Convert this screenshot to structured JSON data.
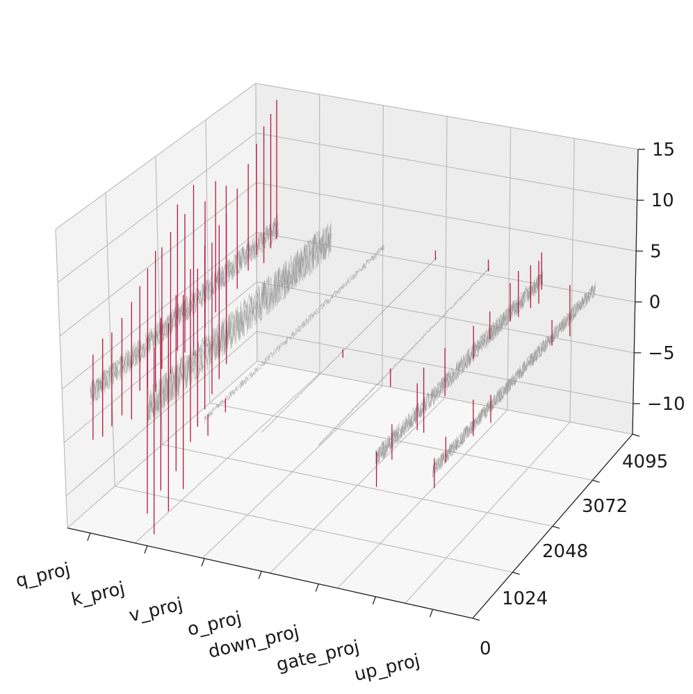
{
  "chart_data": {
    "type": "3d-line-spikes",
    "title": "",
    "xlabel": "",
    "ylabel": "",
    "zlabel": "",
    "categories": [
      "q_proj",
      "k_proj",
      "v_proj",
      "o_proj",
      "down_proj",
      "gate_proj",
      "up_proj"
    ],
    "y_ticks": [
      0,
      1024,
      2048,
      3072,
      4095
    ],
    "y_tick_labels": [
      "0",
      "1024",
      "2048",
      "3072",
      "4095"
    ],
    "ylim": [
      0,
      4095
    ],
    "z_ticks": [
      15,
      10,
      5,
      0,
      -5,
      -10
    ],
    "z_tick_labels": [
      "15",
      "10",
      "5",
      "0",
      "−10"
    ],
    "z_tick_labels_full": [
      "15",
      "10",
      "5",
      "0",
      "−5",
      "−10"
    ],
    "zlim": [
      -13,
      15
    ],
    "grid": true,
    "colors": {
      "noise": "#8f8f8f",
      "spike": "#b8123e",
      "pane_left": "#f3f3f3",
      "pane_back": "#ededed",
      "pane_floor": "#f7f7f7"
    },
    "series": [
      {
        "name": "q_proj",
        "noise_amplitude": 1.2,
        "spikes": [
          {
            "y": 60,
            "top": 3.5,
            "bottom": -4.5
          },
          {
            "y": 270,
            "top": 4.2,
            "bottom": -5.0
          },
          {
            "y": 470,
            "top": 4.0,
            "bottom": -4.8
          },
          {
            "y": 690,
            "top": 4.5,
            "bottom": -4.6
          },
          {
            "y": 900,
            "top": 5.2,
            "bottom": -5.8
          },
          {
            "y": 1080,
            "top": 6.0,
            "bottom": -3.8
          },
          {
            "y": 1250,
            "top": 7.0,
            "bottom": -4.2
          },
          {
            "y": 1420,
            "top": 8.0,
            "bottom": -5.2
          },
          {
            "y": 1560,
            "top": 7.8,
            "bottom": -3.6
          },
          {
            "y": 1750,
            "top": 8.5,
            "bottom": -4.8
          },
          {
            "y": 1900,
            "top": 10.5,
            "bottom": -3.2
          },
          {
            "y": 2060,
            "top": 9.0,
            "bottom": -4.0
          },
          {
            "y": 2250,
            "top": 11.0,
            "bottom": -5.0
          },
          {
            "y": 2500,
            "top": 8.5,
            "bottom": -3.4
          },
          {
            "y": 2730,
            "top": 9.5,
            "bottom": -2.8
          },
          {
            "y": 2960,
            "top": 8.2,
            "bottom": -3.0
          },
          {
            "y": 3200,
            "top": 7.0,
            "bottom": -2.4
          },
          {
            "y": 3440,
            "top": 8.4,
            "bottom": -1.6
          },
          {
            "y": 3620,
            "top": 9.6,
            "bottom": -0.8
          },
          {
            "y": 3780,
            "top": 10.6,
            "bottom": -2.2
          },
          {
            "y": 3930,
            "top": 11.2,
            "bottom": -1.4
          },
          {
            "y": 4060,
            "top": 12.0,
            "bottom": -1.0
          }
        ]
      },
      {
        "name": "k_proj",
        "noise_amplitude": 1.8,
        "spikes": [
          {
            "y": 0,
            "top": 6.5,
            "bottom": -10.0
          },
          {
            "y": 150,
            "top": 5.0,
            "bottom": -12.5
          },
          {
            "y": 300,
            "top": 7.2,
            "bottom": -9.0
          },
          {
            "y": 470,
            "top": 6.0,
            "bottom": -11.6
          },
          {
            "y": 640,
            "top": 8.0,
            "bottom": -8.5
          },
          {
            "y": 800,
            "top": 7.4,
            "bottom": -10.8
          },
          {
            "y": 960,
            "top": 9.2,
            "bottom": -7.0
          },
          {
            "y": 1120,
            "top": 8.6,
            "bottom": -6.2
          },
          {
            "y": 1280,
            "top": 10.2,
            "bottom": -5.2
          },
          {
            "y": 1440,
            "top": 9.8,
            "bottom": -4.4
          },
          {
            "y": 1600,
            "top": 10.8,
            "bottom": -3.6
          },
          {
            "y": 1760,
            "top": 11.2,
            "bottom": -2.8
          }
        ]
      },
      {
        "name": "v_proj",
        "noise_amplitude": 0.35,
        "spikes": [
          {
            "y": 80,
            "top": 0.2,
            "bottom": -1.8
          },
          {
            "y": 480,
            "top": 0.1,
            "bottom": -1.2
          }
        ]
      },
      {
        "name": "o_proj",
        "noise_amplitude": 0.05,
        "spikes": [
          {
            "y": 1900,
            "top": 0.2,
            "bottom": -0.6
          },
          {
            "y": 4060,
            "top": 0.8,
            "bottom": -0.1
          }
        ]
      },
      {
        "name": "down_proj",
        "noise_amplitude": 0.12,
        "spikes": [
          {
            "y": 1720,
            "top": 0.2,
            "bottom": -1.5
          },
          {
            "y": 4060,
            "top": 0.9,
            "bottom": -0.2
          }
        ]
      },
      {
        "name": "gate_proj",
        "noise_amplitude": 0.9,
        "spikes": [
          {
            "y": 20,
            "top": 0.5,
            "bottom": -2.8
          },
          {
            "y": 400,
            "top": 1.5,
            "bottom": -1.8
          },
          {
            "y": 1020,
            "top": 2.8,
            "bottom": -1.6
          },
          {
            "y": 1180,
            "top": 3.6,
            "bottom": -2.5
          },
          {
            "y": 1700,
            "top": 3.3,
            "bottom": -1.2
          },
          {
            "y": 2400,
            "top": 2.5,
            "bottom": -0.6
          },
          {
            "y": 2800,
            "top": 2.2,
            "bottom": -0.4
          },
          {
            "y": 3300,
            "top": 2.8,
            "bottom": -0.8
          },
          {
            "y": 3500,
            "top": 3.1,
            "bottom": -1.2
          },
          {
            "y": 3800,
            "top": 2.4,
            "bottom": -1.6
          },
          {
            "y": 4000,
            "top": 2.0,
            "bottom": -2.0
          },
          {
            "y": 4070,
            "top": 2.5,
            "bottom": -1.0
          }
        ]
      },
      {
        "name": "up_proj",
        "noise_amplitude": 0.7,
        "spikes": [
          {
            "y": 40,
            "top": 1.0,
            "bottom": -1.8
          },
          {
            "y": 330,
            "top": 1.8,
            "bottom": -0.6
          },
          {
            "y": 1020,
            "top": 2.4,
            "bottom": -1.0
          },
          {
            "y": 1460,
            "top": 1.0,
            "bottom": -1.6
          },
          {
            "y": 3000,
            "top": 1.6,
            "bottom": -0.8
          },
          {
            "y": 3450,
            "top": 3.0,
            "bottom": -1.8
          }
        ]
      }
    ]
  }
}
